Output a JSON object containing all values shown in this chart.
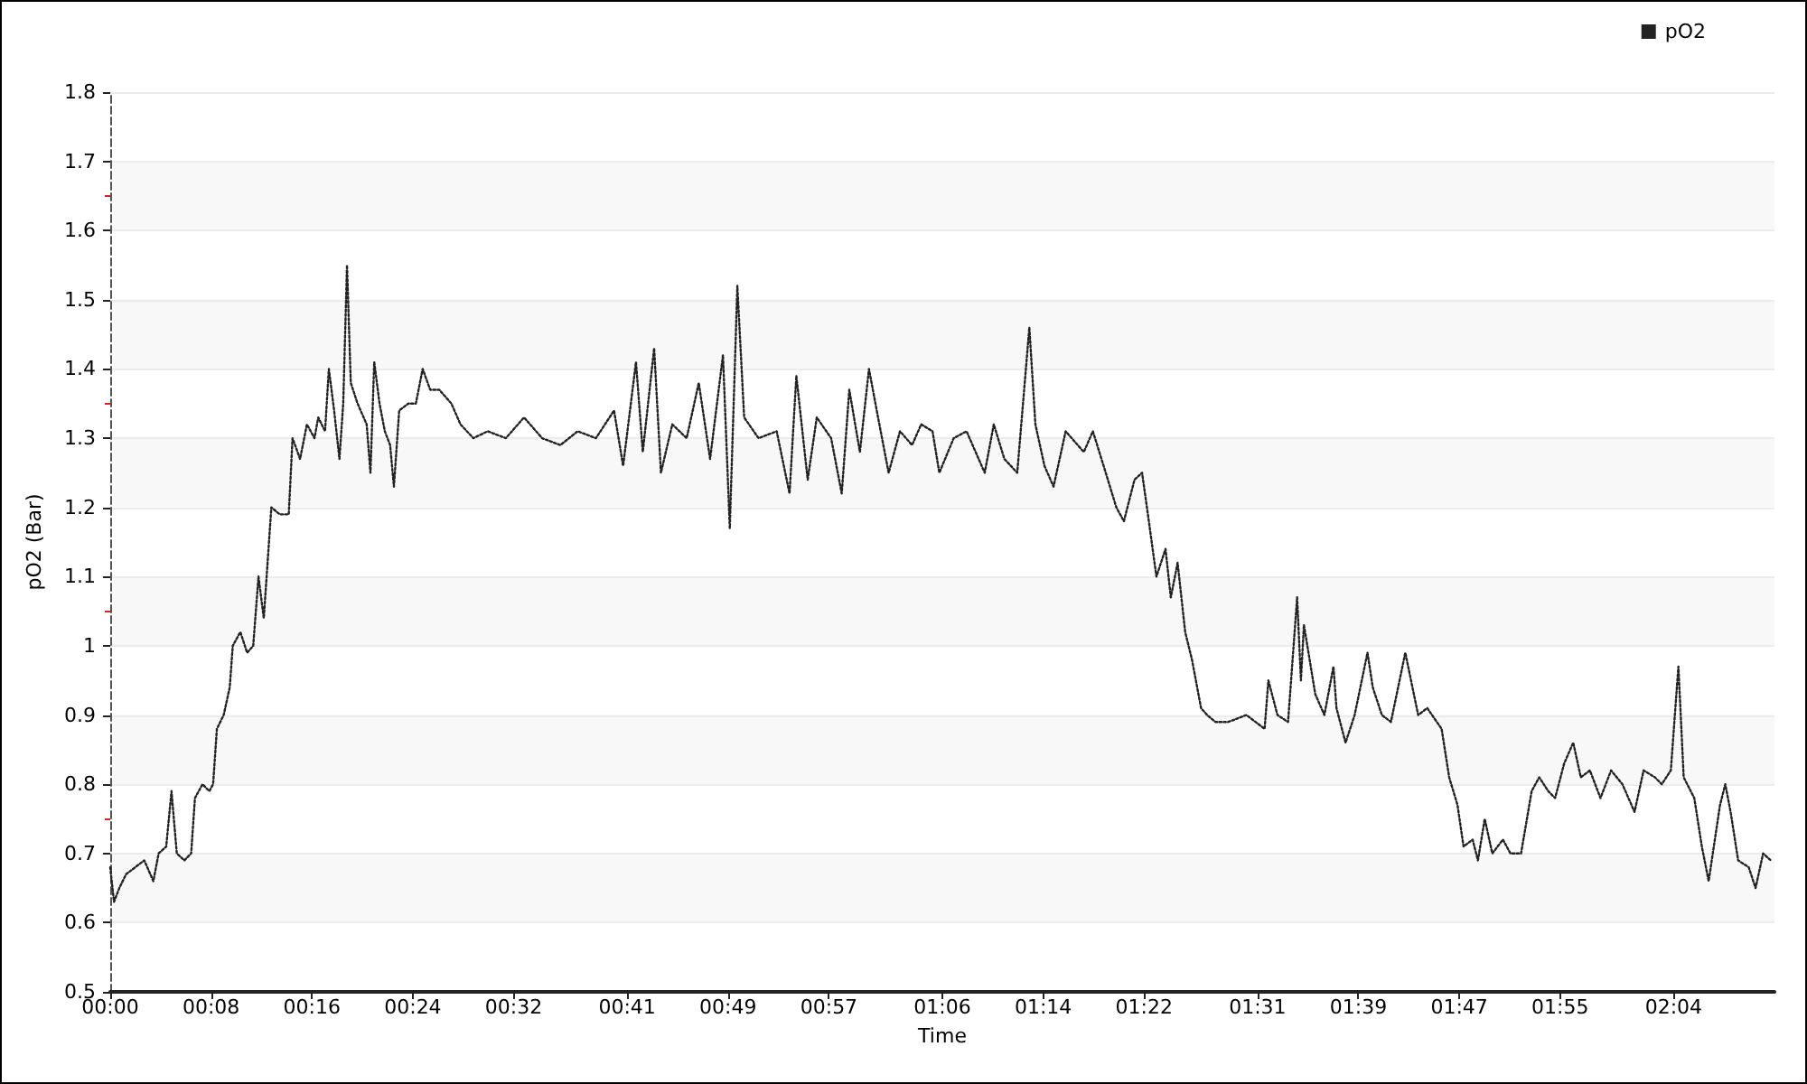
{
  "chart_data": {
    "type": "line",
    "xlabel": "Time",
    "ylabel": "pO2 (Bar)",
    "x": [
      0,
      0.005,
      0.012,
      0.021,
      0.033,
      0.045,
      0.057,
      0.064,
      0.074,
      0.081,
      0.088,
      0.098,
      0.107,
      0.112,
      0.122,
      0.131,
      0.136,
      0.141,
      0.15,
      0.158,
      0.162,
      0.172,
      0.181,
      0.189,
      0.196,
      0.203,
      0.208,
      0.213,
      0.224,
      0.236,
      0.241,
      0.251,
      0.26,
      0.27,
      0.275,
      0.284,
      0.289,
      0.296,
      0.303,
      0.308,
      0.313,
      0.318,
      0.327,
      0.339,
      0.344,
      0.349,
      0.356,
      0.363,
      0.37,
      0.375,
      0.382,
      0.394,
      0.404,
      0.413,
      0.423,
      0.435,
      0.451,
      0.463,
      0.48,
      0.499,
      0.523,
      0.547,
      0.571,
      0.595,
      0.618,
      0.642,
      0.666,
      0.678,
      0.695,
      0.704,
      0.719,
      0.728,
      0.743,
      0.762,
      0.778,
      0.793,
      0.81,
      0.819,
      0.829,
      0.838,
      0.857,
      0.881,
      0.898,
      0.907,
      0.922,
      0.934,
      0.953,
      0.967,
      0.977,
      0.991,
      1.003,
      1.015,
      1.029,
      1.044,
      1.06,
      1.072,
      1.087,
      1.096,
      1.115,
      1.132,
      1.156,
      1.168,
      1.182,
      1.199,
      1.215,
      1.223,
      1.235,
      1.247,
      1.263,
      1.287,
      1.299,
      1.316,
      1.33,
      1.34,
      1.354,
      1.364,
      1.373,
      1.383,
      1.395,
      1.402,
      1.411,
      1.421,
      1.43,
      1.442,
      1.45,
      1.461,
      1.478,
      1.502,
      1.526,
      1.531,
      1.543,
      1.557,
      1.569,
      1.574,
      1.578,
      1.593,
      1.605,
      1.617,
      1.621,
      1.633,
      1.645,
      1.662,
      1.669,
      1.681,
      1.693,
      1.712,
      1.729,
      1.741,
      1.76,
      1.77,
      1.781,
      1.789,
      1.801,
      1.808,
      1.817,
      1.827,
      1.841,
      1.851,
      1.865,
      1.879,
      1.889,
      1.901,
      1.91,
      1.922,
      1.934,
      1.944,
      1.956,
      1.97,
      1.984,
      1.999,
      2.015,
      2.027,
      2.042,
      2.051,
      2.063,
      2.073,
      2.08,
      2.094,
      2.104,
      2.113,
      2.128,
      2.135,
      2.142,
      2.152,
      2.166,
      2.175,
      2.185,
      2.195
    ],
    "series": [
      {
        "name": "pO2",
        "color": "#222222",
        "values": [
          0.68,
          0.63,
          0.65,
          0.67,
          0.68,
          0.69,
          0.66,
          0.7,
          0.71,
          0.79,
          0.7,
          0.69,
          0.7,
          0.78,
          0.8,
          0.79,
          0.8,
          0.88,
          0.9,
          0.94,
          1.0,
          1.02,
          0.99,
          1.0,
          1.1,
          1.04,
          1.12,
          1.2,
          1.19,
          1.19,
          1.3,
          1.27,
          1.32,
          1.3,
          1.33,
          1.31,
          1.4,
          1.34,
          1.27,
          1.35,
          1.55,
          1.38,
          1.35,
          1.32,
          1.25,
          1.41,
          1.35,
          1.31,
          1.29,
          1.23,
          1.34,
          1.35,
          1.35,
          1.4,
          1.37,
          1.37,
          1.35,
          1.32,
          1.3,
          1.31,
          1.3,
          1.33,
          1.3,
          1.29,
          1.31,
          1.3,
          1.34,
          1.26,
          1.41,
          1.28,
          1.43,
          1.25,
          1.32,
          1.3,
          1.38,
          1.27,
          1.42,
          1.17,
          1.52,
          1.33,
          1.3,
          1.31,
          1.22,
          1.39,
          1.24,
          1.33,
          1.3,
          1.22,
          1.37,
          1.28,
          1.4,
          1.33,
          1.25,
          1.31,
          1.29,
          1.32,
          1.31,
          1.25,
          1.3,
          1.31,
          1.25,
          1.32,
          1.27,
          1.25,
          1.46,
          1.32,
          1.26,
          1.23,
          1.31,
          1.28,
          1.31,
          1.25,
          1.2,
          1.18,
          1.24,
          1.25,
          1.18,
          1.1,
          1.14,
          1.07,
          1.12,
          1.02,
          0.98,
          0.91,
          0.9,
          0.89,
          0.89,
          0.9,
          0.88,
          0.95,
          0.9,
          0.89,
          1.07,
          0.95,
          1.03,
          0.93,
          0.9,
          0.97,
          0.91,
          0.86,
          0.9,
          0.99,
          0.94,
          0.9,
          0.89,
          0.99,
          0.9,
          0.91,
          0.88,
          0.81,
          0.77,
          0.71,
          0.72,
          0.69,
          0.75,
          0.7,
          0.72,
          0.7,
          0.7,
          0.79,
          0.81,
          0.79,
          0.78,
          0.83,
          0.86,
          0.81,
          0.82,
          0.78,
          0.82,
          0.8,
          0.76,
          0.82,
          0.81,
          0.8,
          0.82,
          0.97,
          0.81,
          0.78,
          0.71,
          0.66,
          0.77,
          0.8,
          0.76,
          0.69,
          0.68,
          0.65,
          0.7,
          0.69
        ]
      }
    ],
    "xlim": [
      0,
      2.2
    ],
    "xticks": [
      {
        "value": 0,
        "label": "00:00"
      },
      {
        "value": 0.1333,
        "label": "00:08"
      },
      {
        "value": 0.2667,
        "label": "00:16"
      },
      {
        "value": 0.4,
        "label": "00:24"
      },
      {
        "value": 0.5333,
        "label": "00:32"
      },
      {
        "value": 0.6833,
        "label": "00:41"
      },
      {
        "value": 0.8167,
        "label": "00:49"
      },
      {
        "value": 0.95,
        "label": "00:57"
      },
      {
        "value": 1.1,
        "label": "01:06"
      },
      {
        "value": 1.2333,
        "label": "01:14"
      },
      {
        "value": 1.3667,
        "label": "01:22"
      },
      {
        "value": 1.5167,
        "label": "01:31"
      },
      {
        "value": 1.65,
        "label": "01:39"
      },
      {
        "value": 1.7833,
        "label": "01:47"
      },
      {
        "value": 1.9167,
        "label": "01:55"
      },
      {
        "value": 2.0667,
        "label": "02:04"
      }
    ],
    "ylim": [
      0.5,
      1.8
    ],
    "yticks": [
      0.5,
      0.6,
      0.7,
      0.8,
      0.9,
      1,
      1.1,
      1.2,
      1.3,
      1.4,
      1.5,
      1.6,
      1.7,
      1.8
    ],
    "grid": "y",
    "legend": "top right",
    "marker": "none",
    "line_style": "dotted"
  }
}
